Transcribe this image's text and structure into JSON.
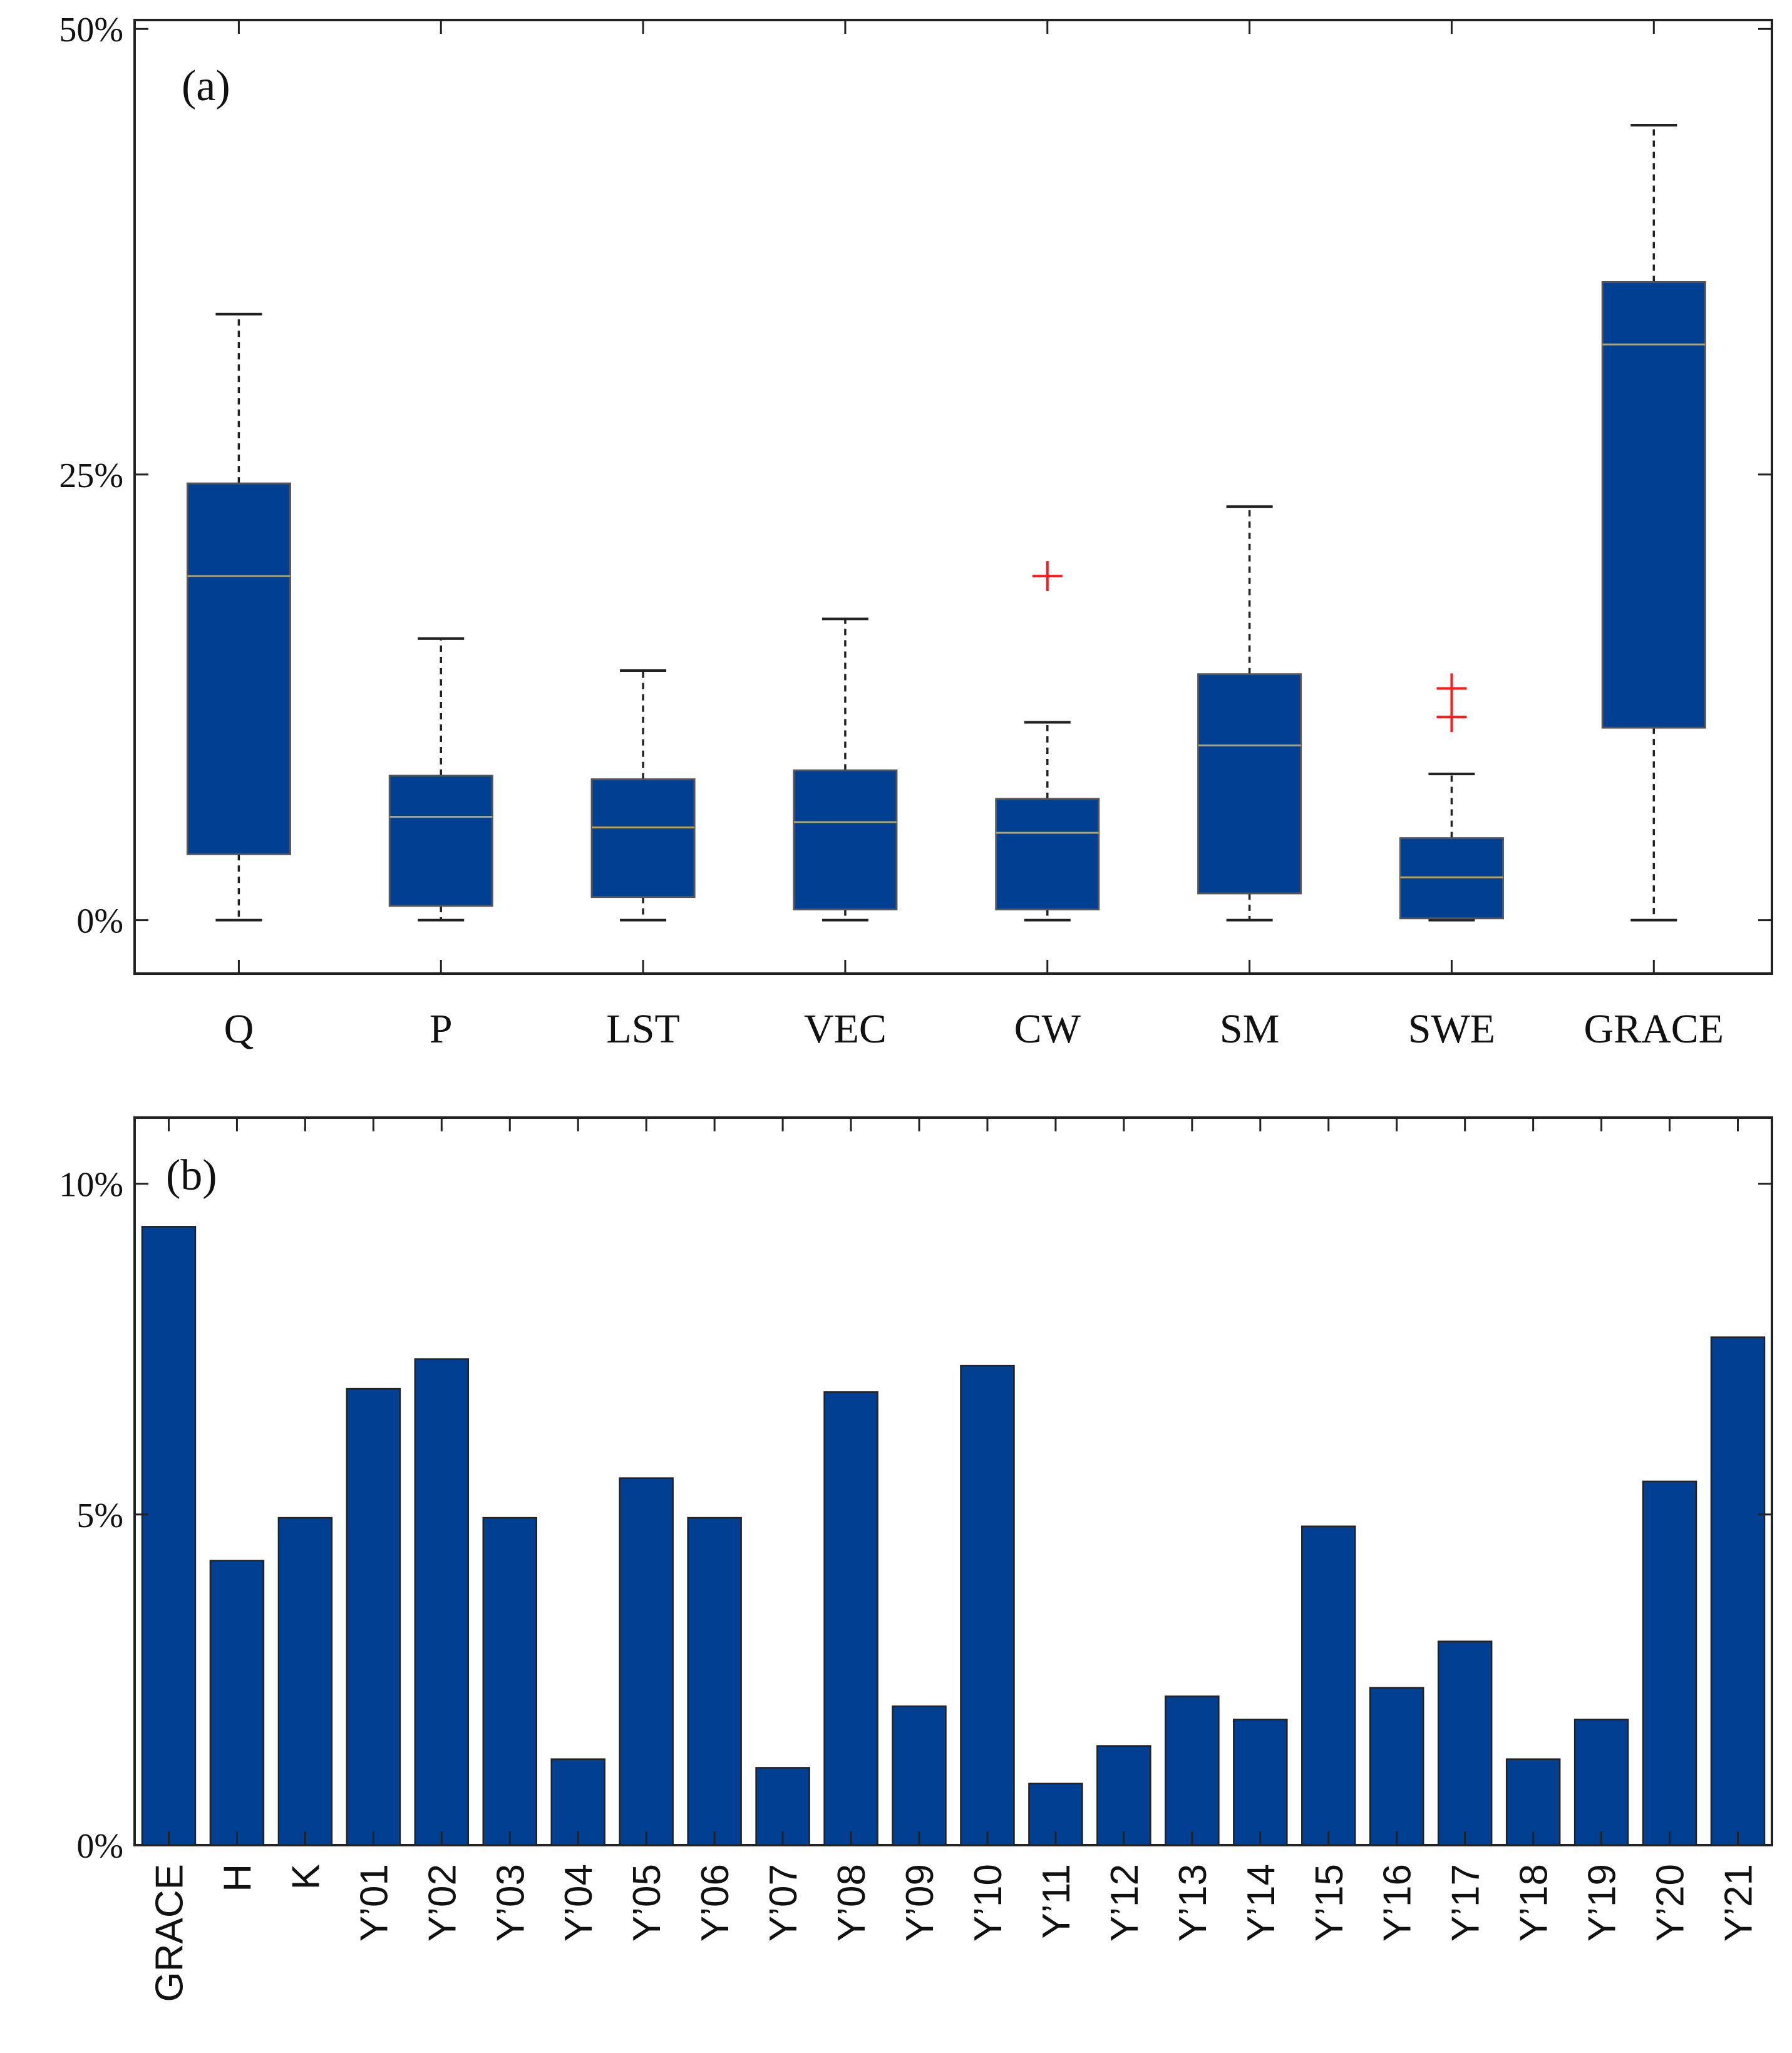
{
  "chart_data": [
    {
      "type": "box",
      "panel_label": "(a)",
      "title": "",
      "xlabel": "",
      "ylabel": "",
      "ylim": [
        -3,
        50.5
      ],
      "yticks": [
        0,
        25,
        50
      ],
      "ytick_labels": [
        "0%",
        "25%",
        "50%"
      ],
      "categories": [
        "Q",
        "P",
        "LST",
        "VEC",
        "CW",
        "SM",
        "SWE",
        "GRACE"
      ],
      "boxes": [
        {
          "name": "Q",
          "min": 0,
          "q1": 3.7,
          "median": 19.3,
          "q3": 24.5,
          "max": 34
        },
        {
          "name": "P",
          "min": 0,
          "q1": 0.8,
          "median": 5.8,
          "q3": 8.1,
          "max": 15.8
        },
        {
          "name": "LST",
          "min": 0,
          "q1": 1.3,
          "median": 5.2,
          "q3": 7.9,
          "max": 14
        },
        {
          "name": "VEC",
          "min": 0,
          "q1": 0.6,
          "median": 5.5,
          "q3": 8.4,
          "max": 16.9
        },
        {
          "name": "CW",
          "min": 0,
          "q1": 0.6,
          "median": 4.9,
          "q3": 6.8,
          "max": 11.1
        },
        {
          "name": "SM",
          "min": 0,
          "q1": 1.5,
          "median": 9.8,
          "q3": 13.8,
          "max": 23.2
        },
        {
          "name": "SWE",
          "min": 0,
          "q1": 0.1,
          "median": 2.4,
          "q3": 4.6,
          "max": 8.2
        },
        {
          "name": "GRACE",
          "min": 0,
          "q1": 10.8,
          "median": 32.3,
          "q3": 35.8,
          "max": 44.6
        }
      ],
      "outliers": [
        {
          "category": "CW",
          "values": [
            19.3
          ]
        },
        {
          "category": "SWE",
          "values": [
            13.0,
            11.4
          ]
        }
      ],
      "colors": {
        "box": "#003f91",
        "median": "#b5a45c",
        "outlier": "#ff1a1a"
      }
    },
    {
      "type": "bar",
      "panel_label": "(b)",
      "title": "",
      "xlabel": "",
      "ylabel": "",
      "ylim": [
        0,
        11
      ],
      "yticks": [
        0,
        5,
        10
      ],
      "ytick_labels": [
        "0%",
        "5%",
        "10%"
      ],
      "categories": [
        "GRACE",
        "H",
        "K",
        "Y’01",
        "Y’02",
        "Y’03",
        "Y’04",
        "Y’05",
        "Y’06",
        "Y’07",
        "Y’08",
        "Y’09",
        "Y’10",
        "Y’11",
        "Y’12",
        "Y’13",
        "Y’14",
        "Y’15",
        "Y’16",
        "Y’17",
        "Y’18",
        "Y’19",
        "Y’20",
        "Y’21"
      ],
      "values": [
        9.35,
        4.3,
        4.95,
        6.9,
        7.35,
        4.95,
        1.3,
        5.55,
        4.95,
        1.17,
        6.85,
        2.1,
        7.25,
        0.93,
        1.5,
        2.25,
        1.9,
        4.82,
        2.38,
        3.08,
        1.3,
        1.9,
        5.5,
        7.68
      ],
      "colors": {
        "bar": "#003f91"
      }
    }
  ]
}
